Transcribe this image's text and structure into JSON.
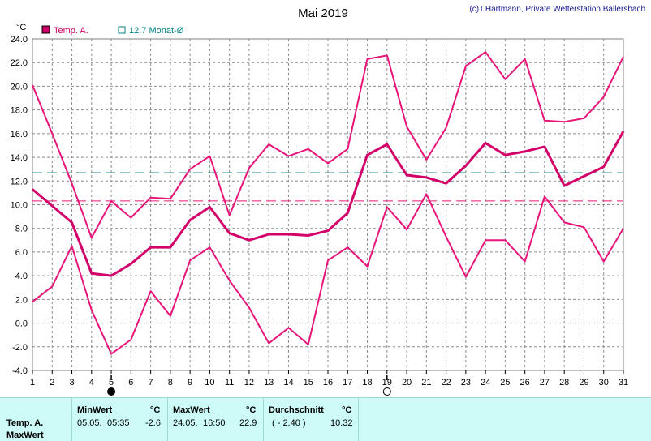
{
  "chart_data": {
    "type": "line",
    "title": "Mai 2019",
    "credit": "(c)T.Hartmann, Private Wetterstation Ballersbach",
    "ylabel": "°C",
    "ylim": [
      -4,
      24
    ],
    "yticks": [
      "24.0",
      "22.0",
      "20.0",
      "18.0",
      "16.0",
      "14.0",
      "12.0",
      "10.0",
      "8.0",
      "6.0",
      "4.0",
      "2.0",
      "0.0",
      "-2.0",
      "-4.0"
    ],
    "x": [
      1,
      2,
      3,
      4,
      5,
      6,
      7,
      8,
      9,
      10,
      11,
      12,
      13,
      14,
      15,
      16,
      17,
      18,
      19,
      20,
      21,
      22,
      23,
      24,
      25,
      26,
      27,
      28,
      29,
      30,
      31
    ],
    "legend": [
      {
        "label": "Temp. A.",
        "color": "#cc0066",
        "style": "filled"
      },
      {
        "label": "12.7 Monat-Ø",
        "color": "#008080",
        "style": "open"
      }
    ],
    "series": [
      {
        "name": "max",
        "color": "#e8147a",
        "width": 2,
        "values": [
          20.1,
          16.0,
          11.8,
          7.2,
          10.3,
          8.9,
          10.6,
          10.5,
          13.0,
          14.1,
          9.1,
          13.1,
          15.1,
          14.1,
          14.7,
          13.5,
          14.7,
          22.3,
          22.6,
          16.6,
          13.8,
          16.5,
          21.7,
          22.9,
          20.6,
          22.3,
          17.1,
          17.0,
          17.3,
          19.1,
          22.5
        ]
      },
      {
        "name": "avg",
        "color": "#d4006a",
        "width": 3,
        "values": [
          11.3,
          9.9,
          8.5,
          4.2,
          4.0,
          5.0,
          6.4,
          6.4,
          8.7,
          9.8,
          7.6,
          7.0,
          7.5,
          7.5,
          7.4,
          7.8,
          9.3,
          14.2,
          15.1,
          12.5,
          12.3,
          11.8,
          13.3,
          15.2,
          14.2,
          14.5,
          14.9,
          11.6,
          12.4,
          13.2,
          16.2
        ]
      },
      {
        "name": "min",
        "color": "#e8147a",
        "width": 2,
        "values": [
          1.8,
          3.1,
          6.5,
          1.1,
          -2.6,
          -1.4,
          2.7,
          0.6,
          5.3,
          6.4,
          3.6,
          1.3,
          -1.7,
          -0.4,
          -1.8,
          5.3,
          6.4,
          4.8,
          9.8,
          7.9,
          10.9,
          7.3,
          3.9,
          7.0,
          7.0,
          5.2,
          10.7,
          8.5,
          8.1,
          5.2,
          8.0
        ]
      }
    ],
    "reference_lines": [
      {
        "value": 12.7,
        "color": "#2a8a8a"
      },
      {
        "value": 10.32,
        "color": "#e8147a"
      }
    ],
    "moon_markers": [
      {
        "day": 5,
        "phase": "new"
      },
      {
        "day": 19,
        "phase": "full"
      }
    ],
    "grid": true
  },
  "stats": {
    "row_label_1": "Temp. A.",
    "row_label_2": "MaxWert",
    "min_header": "MinWert",
    "min_unit": "°C",
    "min_date": "05.05.",
    "min_time": "05:35",
    "min_value": "-2.6",
    "max_header": "MaxWert",
    "max_unit": "°C",
    "max_date": "24.05.",
    "max_time": "16:50",
    "max_value": "22.9",
    "avg_header": "Durchschnitt",
    "avg_unit": "°C",
    "avg_diff": "( - 2.40 )",
    "avg_value": "10.32"
  }
}
